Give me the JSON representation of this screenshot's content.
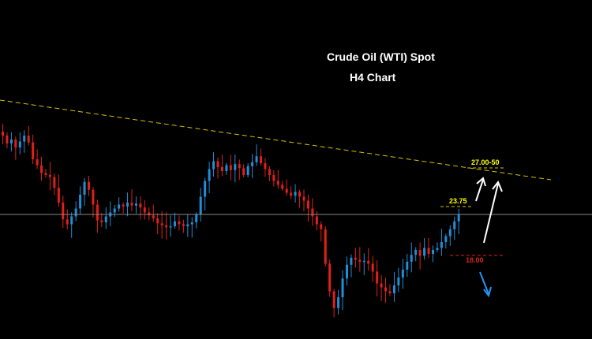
{
  "chart_data": {
    "type": "candlestick",
    "title": "Crude Oil (WTI) Spot",
    "subtitle": "H4 Chart",
    "xlabel": "",
    "ylabel": "",
    "grid": false,
    "colors": {
      "background": "#000000",
      "bull_candle": "#1f8fd8",
      "bear_candle": "#e0201b",
      "trendline": "#d9c400",
      "horizontal_line": "#8a8a8a",
      "up_arrow": "#ffffff",
      "down_arrow": "#2196f3"
    },
    "close_path": [
      31.0,
      30.2,
      30.6,
      29.8,
      30.4,
      31.0,
      30.3,
      28.6,
      28.0,
      27.2,
      27.0,
      26.8,
      25.7,
      24.2,
      22.5,
      22.0,
      22.8,
      23.6,
      25.0,
      26.3,
      25.5,
      24.0,
      22.4,
      22.2,
      22.8,
      23.2,
      23.6,
      24.0,
      23.8,
      24.2,
      23.9,
      24.1,
      23.7,
      23.2,
      22.9,
      22.6,
      22.1,
      21.9,
      21.7,
      21.8,
      22.3,
      22.0,
      21.8,
      22.0,
      22.2,
      23.0,
      24.8,
      26.4,
      27.6,
      28.4,
      27.8,
      27.4,
      28.0,
      27.5,
      28.1,
      27.7,
      27.0,
      27.9,
      28.3,
      28.9,
      28.2,
      27.6,
      27.0,
      26.4,
      26.0,
      25.6,
      25.2,
      24.9,
      25.3,
      24.8,
      24.4,
      23.6,
      22.8,
      22.0,
      21.5,
      18.0,
      15.2,
      13.5,
      14.6,
      16.5,
      17.9,
      18.6,
      18.4,
      18.2,
      18.3,
      18.0,
      17.2,
      16.0,
      15.6,
      15.2,
      15.0,
      15.8,
      16.6,
      17.4,
      18.2,
      18.9,
      19.4,
      18.8,
      19.6,
      19.0,
      19.4,
      19.6,
      20.2,
      20.8,
      21.5,
      22.3,
      23.0
    ],
    "annotations": {
      "target_upper": "27.00-50",
      "target_near": "23.75",
      "support": "18.00"
    },
    "trendline": "descending resistance",
    "current_price_line": 23.0
  }
}
